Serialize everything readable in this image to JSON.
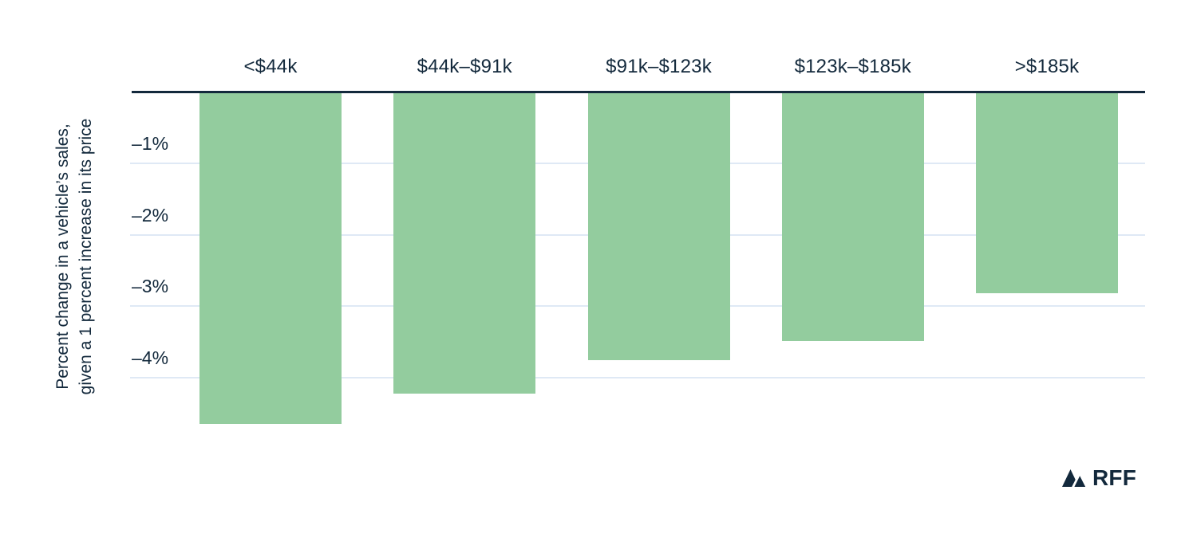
{
  "chart_data": {
    "type": "bar",
    "title": "",
    "categories": [
      "<$44k",
      "$44k–$91k",
      "$91k–$123k",
      "$123k–$185k",
      ">$185k"
    ],
    "values": [
      -4.65,
      -4.23,
      -3.76,
      -3.49,
      -2.82
    ],
    "categories_position": "top",
    "bar_direction": "down",
    "xlabel": "",
    "ylabel_lines": [
      "Percent change in a vehicle’s sales,",
      "given a 1 percent increase in its price"
    ],
    "yticks": [
      {
        "label": "–1%",
        "value": -1
      },
      {
        "label": "–2%",
        "value": -2
      },
      {
        "label": "–3%",
        "value": -3
      },
      {
        "label": "–4%",
        "value": -4
      }
    ],
    "ylim": [
      0,
      -4.8
    ],
    "grid": true,
    "legend_position": "none",
    "colors": {
      "bar": "#93cc9e",
      "axis": "#13293c",
      "text": "#13293c",
      "gridline": "#dfe9f5",
      "background": "#ffffff"
    }
  },
  "branding": {
    "logo_text": "RFF",
    "logo_icon": "mountains-icon"
  }
}
